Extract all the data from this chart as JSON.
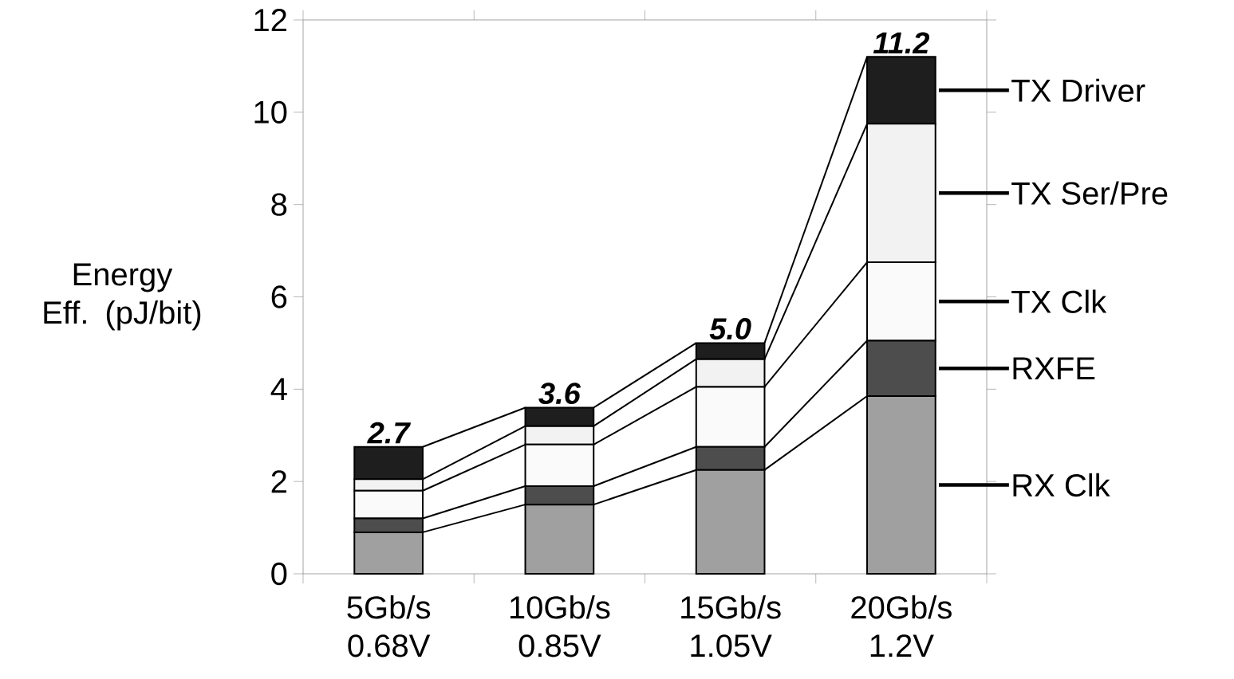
{
  "chart_data": {
    "type": "bar",
    "stacked": true,
    "categories": [
      "5Gb/s 0.68V",
      "10Gb/s 0.85V",
      "15Gb/s 1.05V",
      "20Gb/s 1.2V"
    ],
    "ylabel": "Energy Eff. (pJ/bit)",
    "ylim": [
      0,
      12
    ],
    "yticks": [
      0,
      2,
      4,
      6,
      8,
      10,
      12
    ],
    "series": [
      {
        "name": "RX Clk",
        "color": "#a0a0a0",
        "values": [
          0.9,
          1.5,
          2.25,
          3.85
        ]
      },
      {
        "name": "RXFE",
        "color": "#4d4d4d",
        "values": [
          0.3,
          0.4,
          0.5,
          1.2
        ]
      },
      {
        "name": "TX Clk",
        "color": "#fafafa",
        "values": [
          0.6,
          0.9,
          1.3,
          1.7
        ]
      },
      {
        "name": "TX Ser/Pre",
        "color": "#f2f2f2",
        "values": [
          0.25,
          0.4,
          0.6,
          3.0
        ]
      },
      {
        "name": "TX Driver",
        "color": "#1e1e1e",
        "values": [
          0.7,
          0.4,
          0.35,
          1.45
        ]
      }
    ],
    "totals": [
      "2.7",
      "3.6",
      "5.0",
      "11.2"
    ],
    "legend": "right"
  }
}
